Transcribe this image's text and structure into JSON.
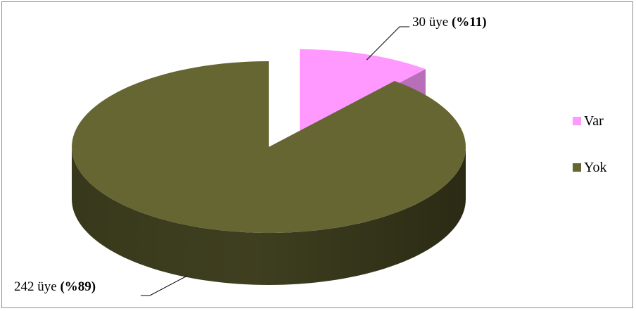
{
  "chart_data": {
    "type": "pie",
    "categories": [
      "Var",
      "Yok"
    ],
    "values": [
      30,
      242
    ],
    "percents": [
      11,
      89
    ],
    "colors": [
      "#ff99ff",
      "#666633"
    ],
    "legend_position": "right",
    "labels": [
      {
        "count": "30 üye",
        "pct": "(%11)"
      },
      {
        "count": "242 üye",
        "pct": "(%89)"
      }
    ]
  }
}
